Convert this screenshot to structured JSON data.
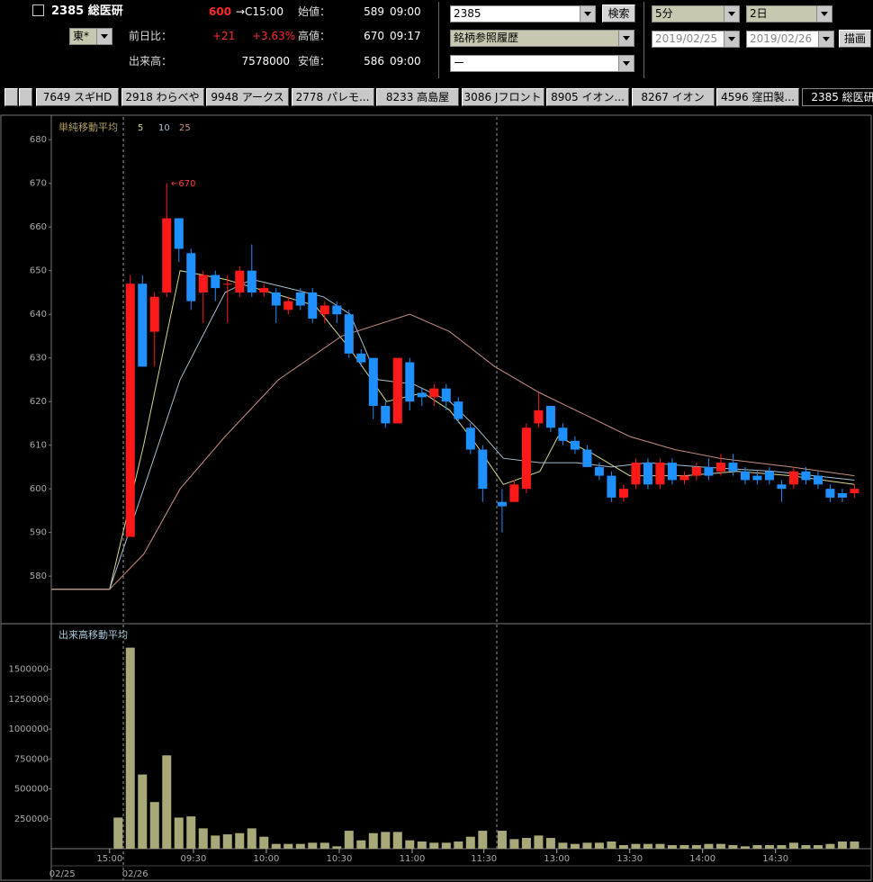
{
  "header": {
    "title": "2385 総医研",
    "market": "東*",
    "price": "600",
    "price_time": "→C15:00",
    "change_label": "前日比：",
    "change": "+21",
    "change_pct": "+3.63%",
    "volume_label": "出来高：",
    "volume": "7578000",
    "open_label": "始値：",
    "open": "589",
    "open_time": "09:00",
    "high_label": "高値：",
    "high": "670",
    "high_time": "09:17",
    "low_label": "安値：",
    "low": "586",
    "low_time": "09:00",
    "code_input": "2385",
    "search_button": "検索",
    "history_select": "銘柄参照履歴",
    "sub_select": "ー",
    "interval": "5分",
    "span": "2日",
    "date_from": "2019/02/25",
    "date_to": "2019/02/26",
    "draw_button": "描画"
  },
  "tabs": [
    "7649 スギHD",
    "2918 わらべや",
    "9948 アークス",
    "2778 パレモ...",
    "8233 高島屋",
    "3086 Jフロント",
    "8905 イオン...",
    "8267 イオン",
    "4596 窪田製...",
    "2385 総医研"
  ],
  "chart_data": [
    {
      "type": "candlestick",
      "legend_title": "単純移動平均",
      "annotation": "←670",
      "up_color": "#ff1a1a",
      "down_color": "#1e90ff",
      "xlim": [
        -6.5,
        60.9
      ],
      "ylim": [
        569.1,
        685.2
      ],
      "yticks": [
        580,
        590,
        600,
        610,
        620,
        630,
        640,
        650,
        660,
        670,
        680
      ],
      "x": [
        0,
        1,
        2,
        3,
        4,
        5,
        6,
        7,
        8,
        9,
        10,
        11,
        12,
        13,
        14,
        15,
        16,
        17,
        18,
        19,
        20,
        21,
        22,
        23,
        24,
        25,
        26,
        27,
        28,
        29,
        30.6,
        31.6,
        32.6,
        33.6,
        34.6,
        35.6,
        36.6,
        37.6,
        38.6,
        39.6,
        40.6,
        41.6,
        42.6,
        43.6,
        44.6,
        45.6,
        46.6,
        47.6,
        48.6,
        49.6,
        50.6,
        51.6,
        52.6,
        53.6,
        54.6,
        55.6,
        56.6,
        57.6,
        58.6,
        59.6
      ],
      "open": [
        589,
        647,
        636,
        645,
        662,
        654,
        645,
        649,
        647,
        645,
        650,
        645,
        645,
        641,
        645,
        645,
        640,
        642,
        640,
        631,
        630,
        619,
        615,
        629,
        622,
        621,
        623,
        620,
        614,
        609,
        597,
        597,
        600,
        615,
        619,
        614,
        611,
        609,
        605,
        603,
        598,
        601,
        606,
        601,
        606,
        602,
        603,
        605,
        604,
        606,
        604,
        603,
        604,
        601,
        601,
        604,
        603,
        600,
        599,
        599
      ],
      "high": [
        649,
        649,
        645,
        670,
        662,
        655,
        650,
        650,
        649,
        651,
        656,
        647,
        646,
        644,
        646,
        646,
        643,
        643,
        641,
        632,
        630,
        620,
        630,
        630,
        623,
        624,
        624,
        621,
        615,
        610,
        600,
        602,
        615,
        622,
        619,
        615,
        612,
        610,
        606,
        604,
        601,
        607,
        607,
        607,
        607,
        604,
        606,
        607,
        608,
        608,
        605,
        604,
        605,
        602,
        605,
        605,
        604,
        601,
        600,
        601
      ],
      "low": [
        589,
        628,
        628,
        644,
        652,
        641,
        638,
        643,
        638,
        644,
        644,
        644,
        638,
        640,
        641,
        638,
        638,
        638,
        630,
        628,
        616,
        614,
        615,
        618,
        619,
        619,
        618,
        615,
        608,
        597,
        590,
        597,
        599,
        614,
        613,
        610,
        608,
        605,
        602,
        597,
        597,
        600,
        600,
        600,
        601,
        601,
        602,
        602,
        603,
        603,
        601,
        601,
        601,
        597,
        600,
        601,
        600,
        597,
        597,
        598
      ],
      "close": [
        647,
        628,
        644,
        662,
        655,
        643,
        649,
        646,
        647,
        650,
        645,
        646,
        642,
        643,
        642,
        639,
        642,
        640,
        631,
        629,
        619,
        615,
        630,
        620,
        621,
        623,
        620,
        616,
        609,
        600,
        596,
        601,
        614,
        618,
        614,
        611,
        609,
        605,
        603,
        598,
        600,
        606,
        601,
        606,
        602,
        603,
        605,
        603,
        606,
        604,
        602,
        602,
        602,
        600,
        604,
        602,
        601,
        598,
        598,
        600
      ],
      "series": [
        {
          "name": "5",
          "color": "#d8d890",
          "x": [
            -6.5,
            -1.7,
            1.1,
            4.1,
            7.8,
            11.5,
            15.2,
            18.1,
            21.1,
            24.1,
            26.3,
            28.5,
            30.7,
            33.7,
            35.2,
            38.1,
            41.1,
            45.6,
            50,
            54.4,
            59.6
          ],
          "values": [
            577,
            577,
            610,
            650,
            648,
            645,
            642,
            632,
            620,
            622,
            618,
            610,
            601,
            604,
            612,
            608,
            603,
            603,
            604,
            603,
            601
          ]
        },
        {
          "name": "10",
          "color": "#a8c0d0",
          "x": [
            -6.5,
            -1.7,
            1.1,
            4.1,
            7.8,
            10,
            13,
            15.9,
            18.1,
            20.4,
            23.3,
            26.3,
            28.5,
            30.7,
            33.7,
            36.7,
            39.6,
            42.6,
            47,
            53,
            59.6
          ],
          "values": [
            577,
            577,
            600,
            625,
            645,
            648,
            646,
            644,
            640,
            625,
            624,
            620,
            614,
            607,
            606,
            606,
            605,
            606,
            605,
            604,
            602
          ]
        },
        {
          "name": "25",
          "color": "#c89080",
          "x": [
            -6.5,
            -1.7,
            1.1,
            4.1,
            7.8,
            12.2,
            17.4,
            23,
            26.3,
            30,
            33.7,
            37.4,
            41.1,
            44.8,
            48.5,
            54.4,
            59.6
          ],
          "values": [
            577,
            577,
            585,
            600,
            612,
            625,
            635,
            640,
            636,
            628,
            622,
            617,
            612,
            609,
            607,
            605,
            603
          ]
        }
      ]
    },
    {
      "type": "bar",
      "title": "出来高移動平均",
      "color": "#a8a878",
      "xlim": [
        -6.5,
        60.9
      ],
      "ylim": [
        0,
        1850000
      ],
      "yticks": [
        250000,
        500000,
        750000,
        1000000,
        1250000,
        1500000
      ],
      "xticks": [
        {
          "value": -1.7,
          "label": "15:00"
        },
        {
          "value": 5.2,
          "label": "09:30"
        },
        {
          "value": 11.2,
          "label": "10:00"
        },
        {
          "value": 17.2,
          "label": "10:30"
        },
        {
          "value": 23.2,
          "label": "11:00"
        },
        {
          "value": 29.1,
          "label": "11:30"
        },
        {
          "value": 35.1,
          "label": "13:00"
        },
        {
          "value": 41.1,
          "label": "13:30"
        },
        {
          "value": 47.1,
          "label": "14:00"
        },
        {
          "value": 53.1,
          "label": "14:30"
        }
      ],
      "date_labels": [
        {
          "value": -5.6,
          "label": "02/25"
        },
        {
          "value": 0.4,
          "label": "02/26"
        }
      ],
      "x": [
        -1,
        0,
        1,
        2,
        3,
        4,
        5,
        6,
        7,
        8,
        9,
        10,
        11,
        12,
        13,
        14,
        15,
        16,
        17,
        18,
        19,
        20,
        21,
        22,
        23,
        24,
        25,
        26,
        27,
        28,
        29,
        30.6,
        31.6,
        32.6,
        33.6,
        34.6,
        35.6,
        36.6,
        37.6,
        38.6,
        39.6,
        40.6,
        41.6,
        42.6,
        43.6,
        44.6,
        45.6,
        46.6,
        47.6,
        48.6,
        49.6,
        50.6,
        51.6,
        52.6,
        53.6,
        54.6,
        55.6,
        56.6,
        57.6,
        58.6,
        59.6
      ],
      "values": [
        260000,
        1680000,
        620000,
        390000,
        780000,
        260000,
        270000,
        170000,
        110000,
        120000,
        130000,
        170000,
        100000,
        40000,
        40000,
        40000,
        50000,
        50000,
        20000,
        150000,
        70000,
        130000,
        140000,
        140000,
        70000,
        60000,
        50000,
        50000,
        60000,
        100000,
        150000,
        150000,
        80000,
        90000,
        110000,
        90000,
        50000,
        40000,
        50000,
        50000,
        60000,
        30000,
        40000,
        40000,
        40000,
        30000,
        30000,
        30000,
        40000,
        40000,
        30000,
        20000,
        30000,
        30000,
        30000,
        50000,
        30000,
        30000,
        40000,
        60000,
        60000
      ]
    }
  ]
}
